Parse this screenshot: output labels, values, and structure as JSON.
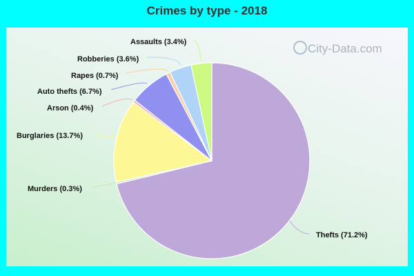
{
  "title": "Crimes by type - 2018",
  "watermark": "City-Data.com",
  "colors": {
    "background": "#00ffff",
    "title": "#333333"
  },
  "chart_data": {
    "type": "pie",
    "title": "Crimes by type - 2018",
    "start_angle_deg": 0,
    "direction": "clockwise",
    "slices": [
      {
        "label": "Thefts",
        "value": 71.2,
        "color": "#bea8d9",
        "text": "Thefts (71.2%)"
      },
      {
        "label": "Murders",
        "value": 0.3,
        "color": "#cce6b8",
        "text": "Murders (0.3%)"
      },
      {
        "label": "Burglaries",
        "value": 13.7,
        "color": "#fdf895",
        "text": "Burglaries (13.7%)"
      },
      {
        "label": "Arson",
        "value": 0.4,
        "color": "#f0b0b8",
        "text": "Arson (0.4%)"
      },
      {
        "label": "Auto thefts",
        "value": 6.7,
        "color": "#9090f0",
        "text": "Auto thefts (6.7%)"
      },
      {
        "label": "Rapes",
        "value": 0.7,
        "color": "#fcd0a8",
        "text": "Rapes (0.7%)"
      },
      {
        "label": "Robberies",
        "value": 3.6,
        "color": "#b0d4f8",
        "text": "Robberies (3.6%)"
      },
      {
        "label": "Assaults",
        "value": 3.4,
        "color": "#ccfa80",
        "text": "Assaults (3.4%)"
      }
    ],
    "legend": "none (inline labels with leader lines)"
  },
  "labels": {
    "thefts": "Thefts (71.2%)",
    "murders": "Murders (0.3%)",
    "burglaries": "Burglaries (13.7%)",
    "arson": "Arson (0.4%)",
    "auto_thefts": "Auto thefts (6.7%)",
    "rapes": "Rapes (0.7%)",
    "robberies": "Robberies (3.6%)",
    "assaults": "Assaults (3.4%)"
  }
}
